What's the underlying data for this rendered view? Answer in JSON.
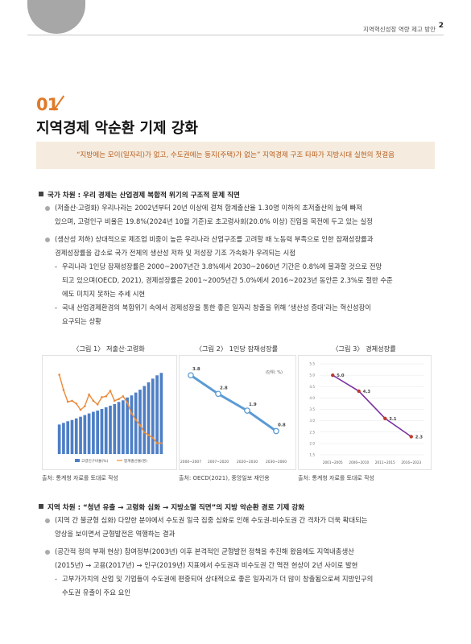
{
  "header": {
    "title": "지역혁신성장 역량 제고 방안",
    "page": "2"
  },
  "section": {
    "number": "01",
    "title": "지역경제 악순환 기제 강화"
  },
  "quote": "“지방에는 모이(일자리)가 없고, 수도권에는 둥지(주택)가 없는” 지역경제 구조 타파가 지방시대 실현의 첫걸음",
  "national": {
    "heading": "국가 차원 : 우리 경제는 산업경제 복합적 위기의 구조적 문제 직면",
    "bullets": [
      {
        "lines": [
          "(저출산·고령화) 우리나라는 2002년부터 20년 이상에 걸쳐 합계출산율 1.30명 이하의 초저출산의 늪에 빠져",
          "있으며, 고령인구 비율은 19.8%(2024년 10월 기준)로 초고령사회(20.0% 이상) 진입을 목전에 두고 있는 실정"
        ]
      },
      {
        "lines": [
          "(생산성 저하) 상대적으로 제조업 비중이 높은 우리나라 산업구조를 고려할 때 노동력 부족으로 인한 잠재성장률과",
          "경제성장률을 감소로 국가 전체의 생산성 저하 및 저성장 기조 가속화가 우려되는 시점"
        ]
      }
    ],
    "subs": [
      {
        "lines": [
          "우리나라 1인당 잠재성장률은 2000~2007년간 3.8%에서 2030~2060년 기간은 0.8%에 불과할 것으로 전망",
          "되고 있으며(OECD, 2021), 경제성장률은 2001~2005년간 5.0%에서 2016~2023년 동안은 2.3%로 절반 수준",
          "에도 미치지 못하는 추세 시현"
        ]
      },
      {
        "lines": [
          "국내 산업경제환경의 복합위기 속에서 경제성장을 통한 좋은 일자리 창출을 위해 ‘생산성 증대’라는 혁신성장이",
          "요구되는 상황"
        ]
      }
    ]
  },
  "figures": [
    {
      "caption": "〈그림 1〉 저출산·고령화",
      "source": "출처: 통계청 자료를 토대로 작성",
      "legend": [
        "고령인구비율(%)",
        "합계출산율(명)"
      ]
    },
    {
      "caption": "〈그림 2〉 1인당 잠재성장률",
      "source": "출처: OECD(2021), 중앙일보 재인용",
      "unit": "(단위: %)"
    },
    {
      "caption": "〈그림 3〉 경제성장률",
      "source": "출처: 통계청 자료를 토대로 작성"
    }
  ],
  "chart_data": [
    {
      "type": "bar",
      "title": "〈그림 1〉 저출산·고령화",
      "series": [
        {
          "name": "고령인구비율(%)",
          "type": "bar",
          "values": [
            7.2,
            7.6,
            8.0,
            8.3,
            8.7,
            9.1,
            9.5,
            9.9,
            10.3,
            10.6,
            11.0,
            11.4,
            11.8,
            12.2,
            12.7,
            13.1,
            13.8,
            14.3,
            15.0,
            15.7,
            16.6,
            17.5,
            18.4,
            19.2,
            19.8
          ]
        },
        {
          "name": "합계출산율(명)",
          "type": "line",
          "values": [
            1.48,
            1.31,
            1.18,
            1.19,
            1.16,
            1.09,
            1.13,
            1.26,
            1.19,
            1.15,
            1.23,
            1.24,
            1.3,
            1.19,
            1.21,
            1.24,
            1.17,
            1.05,
            0.98,
            0.92,
            0.84,
            0.81,
            0.78,
            0.72,
            0.72
          ]
        }
      ],
      "ylim_bar": [
        0,
        22
      ],
      "ylim_line": [
        0.6,
        1.6
      ]
    },
    {
      "type": "line",
      "title": "〈그림 2〉 1인당 잠재성장률",
      "categories": [
        "2000~2007",
        "2007~2020",
        "2020~2030",
        "2030~2060"
      ],
      "values": [
        3.8,
        2.8,
        1.9,
        0.8
      ],
      "ylim": [
        0,
        4.5
      ]
    },
    {
      "type": "line",
      "title": "〈그림 3〉 경제성장률",
      "categories": [
        "2001~2005",
        "2006~2010",
        "2011~2015",
        "2016~2023"
      ],
      "values": [
        5.0,
        4.3,
        3.1,
        2.3
      ],
      "yticks": [
        1.5,
        2.0,
        2.5,
        3.0,
        3.5,
        4.0,
        4.5,
        5.0,
        5.5
      ],
      "ylim": [
        1.5,
        5.5
      ]
    }
  ],
  "regional": {
    "heading": "지역 차원 : “청년 유출 → 고령화 심화 → 지방소멸 직면”의 지방 악순환 경로 기제 강화",
    "bullets": [
      {
        "lines": [
          "(지역 간 불균형 심화) 다양한 분야에서 수도권 일극 집중 심화로 인해 수도권-비수도권 간 격차가 더욱 확대되는",
          "양상을 보이면서 균형발전은 역행하는 결과"
        ]
      },
      {
        "lines": [
          "(공간적 정의 부재 현상) 참여정부(2003년) 이후 본격적인 균형발전 정책을 추진해 왔음에도 지역내총생산",
          "(2015년) → 고용(2017년) → 인구(2019년) 지표에서 수도권과 비수도권 간 역전 현상이 2년 사이로 발현"
        ]
      }
    ],
    "subs": [
      {
        "lines": [
          "고부가가치의 산업 및 기업들이 수도권에 편중되어 상대적으로 좋은 일자리가 더 많이 창출됨으로써 지방인구의",
          "수도권 유출이 주요 요인"
        ]
      }
    ]
  }
}
